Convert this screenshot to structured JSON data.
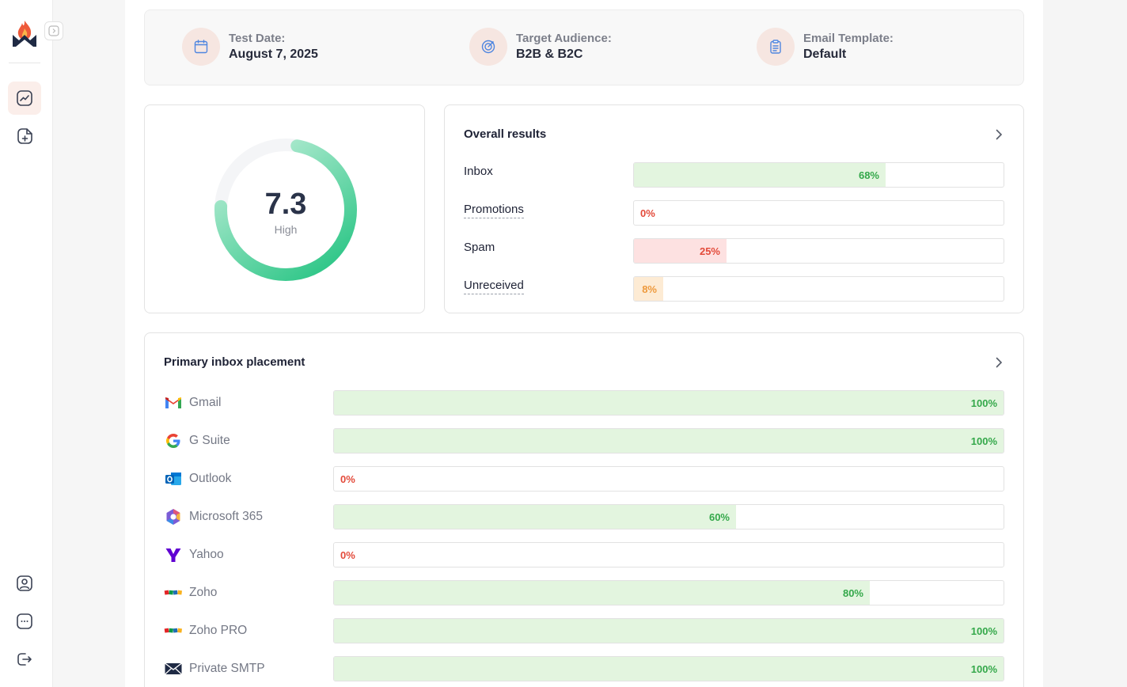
{
  "colors": {
    "accent": "#e8573f",
    "success_fill": "#e3f5df",
    "success_text": "#34a84a",
    "danger_fill": "#fde1e1",
    "danger_text": "#e34a3a",
    "warning_fill": "#fdebd4",
    "warning_text": "#ee9a3d"
  },
  "sidebar": {
    "icons": [
      "logo-flame-icon",
      "chevron-right-icon",
      "chart-trend-icon",
      "add-file-icon",
      "user-profile-icon",
      "chat-bubble-icon",
      "logout-icon"
    ]
  },
  "info": {
    "test_date": {
      "label": "Test Date:",
      "value": "August 7, 2025",
      "icon": "calendar-icon"
    },
    "audience": {
      "label": "Target Audience:",
      "value": "B2B & B2C",
      "icon": "target-icon"
    },
    "template": {
      "label": "Email Template:",
      "value": "Default",
      "icon": "clipboard-icon"
    }
  },
  "score": {
    "value": "7.3",
    "label": "High",
    "fraction": 0.73
  },
  "overall": {
    "title": "Overall results",
    "rows": [
      {
        "label": "Inbox",
        "value": 68,
        "text": "68%",
        "status": "success"
      },
      {
        "label": "Promotions",
        "value": 0,
        "text": "0%",
        "status": "danger"
      },
      {
        "label": "Spam",
        "value": 25,
        "text": "25%",
        "status": "danger"
      },
      {
        "label": "Unreceived",
        "value": 8,
        "text": "8%",
        "status": "warning"
      }
    ]
  },
  "placement": {
    "title": "Primary inbox placement",
    "rows": [
      {
        "name": "Gmail",
        "icon": "gmail-icon",
        "value": 100,
        "text": "100%"
      },
      {
        "name": "G Suite",
        "icon": "google-icon",
        "value": 100,
        "text": "100%"
      },
      {
        "name": "Outlook",
        "icon": "outlook-icon",
        "value": 0,
        "text": "0%"
      },
      {
        "name": "Microsoft 365",
        "icon": "microsoft-365-icon",
        "value": 60,
        "text": "60%"
      },
      {
        "name": "Yahoo",
        "icon": "yahoo-icon",
        "value": 0,
        "text": "0%"
      },
      {
        "name": "Zoho",
        "icon": "zoho-icon",
        "value": 80,
        "text": "80%"
      },
      {
        "name": "Zoho PRO",
        "icon": "zoho-icon",
        "value": 100,
        "text": "100%"
      },
      {
        "name": "Private SMTP",
        "icon": "envelope-icon",
        "value": 100,
        "text": "100%"
      }
    ]
  }
}
